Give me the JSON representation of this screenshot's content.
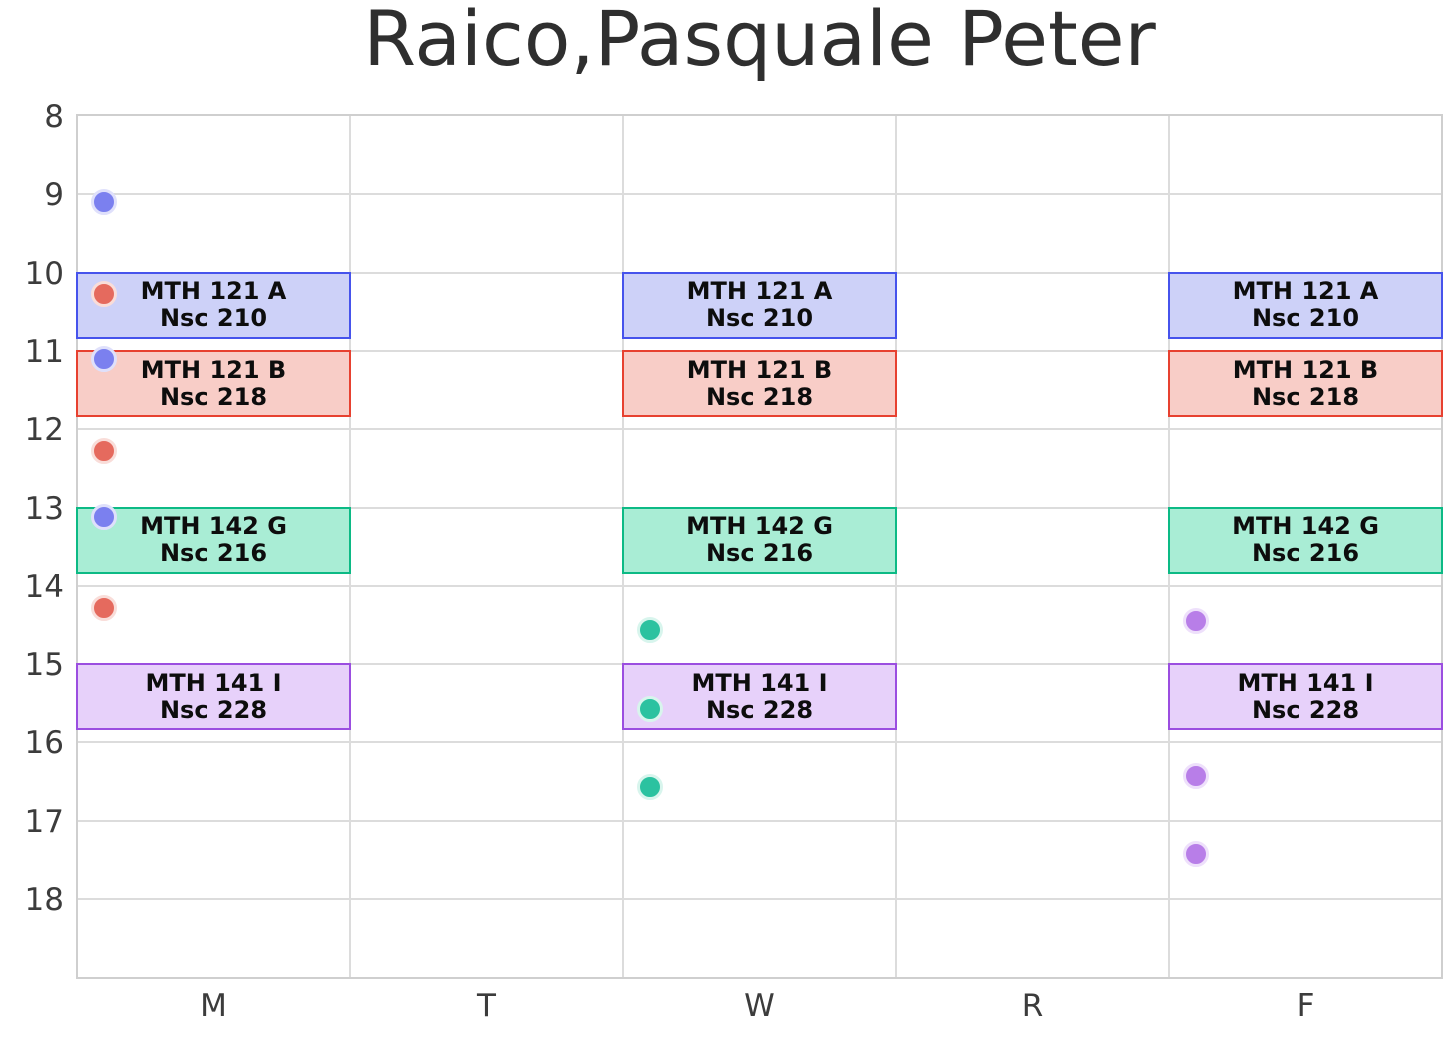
{
  "title": "Raico,Pasquale Peter",
  "chart_data": {
    "type": "scatter",
    "title": "Raico,Pasquale Peter",
    "xlabel": "",
    "ylabel": "",
    "x_categories": [
      "M",
      "T",
      "W",
      "R",
      "F"
    ],
    "y_ticks": [
      8,
      9,
      10,
      11,
      12,
      13,
      14,
      15,
      16,
      17,
      18
    ],
    "ylim": [
      8,
      19
    ],
    "y_inverted": true,
    "grid": true,
    "classes": [
      {
        "course": "MTH 121 A",
        "room": "Nsc 210",
        "days": [
          "M",
          "W",
          "F"
        ],
        "start": 10.0,
        "end": 10.833
      },
      {
        "course": "MTH 121 B",
        "room": "Nsc 218",
        "days": [
          "M",
          "W",
          "F"
        ],
        "start": 11.0,
        "end": 11.833
      },
      {
        "course": "MTH 142 G",
        "room": "Nsc 216",
        "days": [
          "M",
          "W",
          "F"
        ],
        "start": 13.0,
        "end": 13.833
      },
      {
        "course": "MTH 141 I",
        "room": "Nsc 228",
        "days": [
          "M",
          "W",
          "F"
        ],
        "start": 15.0,
        "end": 15.833
      }
    ],
    "points": [
      {
        "day": "M",
        "hour": 9.1,
        "course": "MTH 121 A"
      },
      {
        "day": "M",
        "hour": 10.27,
        "course": "MTH 121 B"
      },
      {
        "day": "M",
        "hour": 11.1,
        "course": "MTH 121 A"
      },
      {
        "day": "M",
        "hour": 12.28,
        "course": "MTH 121 B"
      },
      {
        "day": "M",
        "hour": 13.12,
        "course": "MTH 121 A"
      },
      {
        "day": "M",
        "hour": 14.28,
        "course": "MTH 121 B"
      },
      {
        "day": "W",
        "hour": 14.57,
        "course": "MTH 142 G"
      },
      {
        "day": "W",
        "hour": 15.57,
        "course": "MTH 142 G"
      },
      {
        "day": "W",
        "hour": 16.57,
        "course": "MTH 142 G"
      },
      {
        "day": "F",
        "hour": 14.45,
        "course": "MTH 141 I"
      },
      {
        "day": "F",
        "hour": 16.43,
        "course": "MTH 141 I"
      },
      {
        "day": "F",
        "hour": 17.43,
        "course": "MTH 141 I"
      }
    ],
    "palette": {
      "MTH 121 A": {
        "box_fill": "#cdd1f8",
        "box_border": "#4653ec",
        "dot": "#7b80ef",
        "dot_ring": "#dfe0fb"
      },
      "MTH 121 B": {
        "box_fill": "#f8cdc7",
        "box_border": "#e74130",
        "dot": "#e56a5e",
        "dot_ring": "#f9ddd9"
      },
      "MTH 142 G": {
        "box_fill": "#a9edd5",
        "box_border": "#0cba85",
        "dot": "#2bc2a0",
        "dot_ring": "#d8f5ed"
      },
      "MTH 141 I": {
        "box_fill": "#e7d1fa",
        "box_border": "#9b4ee0",
        "dot": "#b87ee8",
        "dot_ring": "#eee0fb"
      }
    },
    "grid_color": "#dcdcdc"
  }
}
